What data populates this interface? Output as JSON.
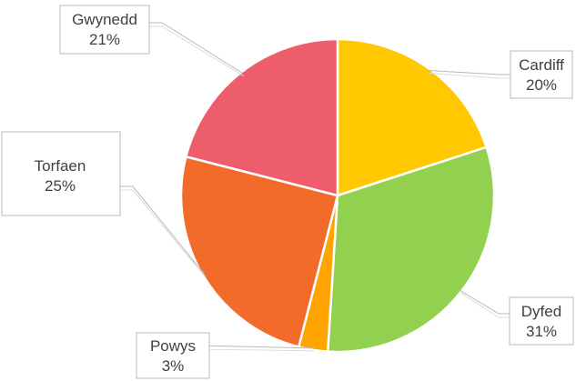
{
  "chart_data": {
    "type": "pie",
    "title": "",
    "categories": [
      "Cardiff",
      "Dyfed",
      "Powys",
      "Torfaen",
      "Gwynedd"
    ],
    "values": [
      20,
      31,
      3,
      25,
      21
    ],
    "value_labels": [
      "20%",
      "31%",
      "3%",
      "25%",
      "21%"
    ],
    "colors": [
      "#FFC800",
      "#92D050",
      "#FFA400",
      "#F26B2A",
      "#EE5D6C"
    ],
    "start_angle_deg": 0,
    "direction": "clockwise",
    "legend": "none",
    "data_labels": "callout"
  }
}
